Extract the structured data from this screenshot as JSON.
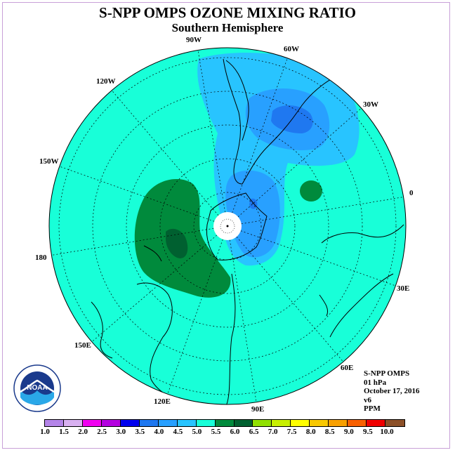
{
  "header": {
    "title": "S-NPP OMPS OZONE MIXING RATIO",
    "subtitle": "Southern Hemisphere"
  },
  "info": {
    "instrument": "S-NPP OMPS",
    "level": "01 hPa",
    "date": "October 17, 2016",
    "version": "v6",
    "units": "PPM"
  },
  "logo": {
    "text": "NOAA"
  },
  "map_labels": [
    "90W",
    "60W",
    "30W",
    "0",
    "30E",
    "60E",
    "90E",
    "120E",
    "150E",
    "180",
    "150W",
    "120W"
  ],
  "colorbar": {
    "ticks": [
      "1.0",
      "1.5",
      "2.0",
      "2.5",
      "3.0",
      "3.5",
      "4.0",
      "4.5",
      "5.0",
      "5.5",
      "6.0",
      "6.5",
      "7.0",
      "7.5",
      "8.0",
      "8.5",
      "9.0",
      "9.5",
      "10.0"
    ],
    "colors": [
      "#b484e8",
      "#d8b0f0",
      "#f000f0",
      "#b400e0",
      "#0000ee",
      "#1f78f0",
      "#28a0ff",
      "#28c4ff",
      "#18ffd8",
      "#008a3c",
      "#006030",
      "#90e000",
      "#c8f000",
      "#ffff00",
      "#f8c800",
      "#f8a000",
      "#f86000",
      "#f00000",
      "#8c5028"
    ]
  },
  "colors": {
    "background_field": "#18ffd8",
    "dark_green": "#008a3c",
    "medium_blue": "#28c4ff",
    "blue": "#28a0ff",
    "deep_blue": "#1f78f0"
  }
}
